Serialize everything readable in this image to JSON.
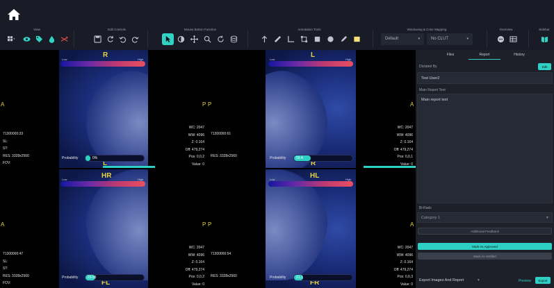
{
  "colors": {
    "accent": "#2fd0c4",
    "toolbar_bg": "#191c26",
    "panel_bg": "#1d2029",
    "overlay_label": "#e8d43a"
  },
  "toolbar": {
    "groups": [
      {
        "label": "View"
      },
      {
        "label": "Edit Controls"
      },
      {
        "label": "Mouse Button Function"
      },
      {
        "label": "Annotation Tools"
      },
      {
        "label": "Windowing & Color Mapping"
      },
      {
        "label": "Overview"
      },
      {
        "label": "Sidebar"
      }
    ],
    "windowing_preset": "Default",
    "color_map": "No CLUT",
    "icons": {
      "home": "home-icon",
      "view": [
        "layout-grid-icon",
        "eye-icon",
        "tag-icon",
        "drop-icon",
        "crossed-arrows-icon"
      ],
      "edit": [
        "save-icon",
        "refresh-icon",
        "undo-icon",
        "redo-icon"
      ],
      "mouse": [
        "pointer-icon",
        "contrast-icon",
        "pan-icon",
        "zoom-icon",
        "rotate-icon",
        "layers-icon"
      ],
      "annotation": [
        "arrow-up-icon",
        "ruler-icon",
        "angle-icon",
        "crop-icon",
        "square-icon",
        "circle-icon",
        "pen-icon",
        "note-icon"
      ],
      "overview": [
        "chat-icon",
        "table-icon"
      ],
      "sidebar": [
        "book-icon"
      ]
    }
  },
  "legend": {
    "low": "Low",
    "high": "High"
  },
  "viewports": [
    {
      "label": "R",
      "bottom_label": "L",
      "left_side": "A",
      "right_side": "P",
      "probability_label": "Probability",
      "probability": "0%",
      "probability_value": 0,
      "left_overlay": [
        "71300000:33",
        "SL:",
        "ST:",
        "RES: 3328x2560",
        "FOV:"
      ]
    },
    {
      "label": "L",
      "bottom_label": "R",
      "left_side": "P",
      "right_side": "A",
      "probability_label": "Probability",
      "probability": "59.4",
      "probability_value": 59.4,
      "left_overlay": [
        "71300000:61",
        "RES: 3328x2560"
      ],
      "right_overlay": [
        "WC: 2047",
        "WW: 4096",
        "Z: 0.164",
        "Off: 479,274",
        "Pos: 0,0,1",
        "Value: 0"
      ],
      "left_right_overlay": [
        "WC: 2047",
        "WW: 4096",
        "Z: 0.164",
        "Off: 479,274",
        "Pos: 0,0,2",
        "Value: 0"
      ]
    },
    {
      "label": "HR",
      "bottom_label": "FL",
      "left_side": "A",
      "right_side": "P",
      "probability_label": "Probability",
      "probability": "23.55",
      "probability_value": 23.55,
      "left_overlay": [
        "71300000:47",
        "SL:",
        "ST:",
        "RES: 3328x2560",
        "FOV:"
      ]
    },
    {
      "label": "HL",
      "bottom_label": "FR",
      "left_side": "P",
      "right_side": "A",
      "probability_label": "Probability",
      "probability": "21.1",
      "probability_value": 21.1,
      "left_overlay": [
        "71300000:54",
        "RES: 3328x2560"
      ],
      "right_overlay": [
        "WC: 2047",
        "WW: 4096",
        "Z: 0.164",
        "Off: 479,274",
        "Pos: 0,0,3",
        "Value: 0"
      ],
      "left_right_overlay": [
        "WC: 2047",
        "WW: 4096",
        "Z: 0.164",
        "Off: 479,274",
        "Pos: 0,0,2",
        "Value: 0"
      ]
    }
  ],
  "panel": {
    "tabs": [
      "Files",
      "Report",
      "History"
    ],
    "active_tab": "Report",
    "dictated_by_label": "Dictated By",
    "edit_button": "Edit",
    "dictated_by_value": "Test User2",
    "main_report_label": "Main Report Text",
    "main_report_text": "Main report text",
    "birads_label": "Bi-Rads",
    "birads_value": "Category 1",
    "additional_feedback": "Additional Feedback",
    "mark_approved": "Mark As Approved",
    "mark_verified": "Mark As Verified",
    "export_select": "Export Images And Report",
    "preview": "Preview",
    "export": "Export"
  }
}
